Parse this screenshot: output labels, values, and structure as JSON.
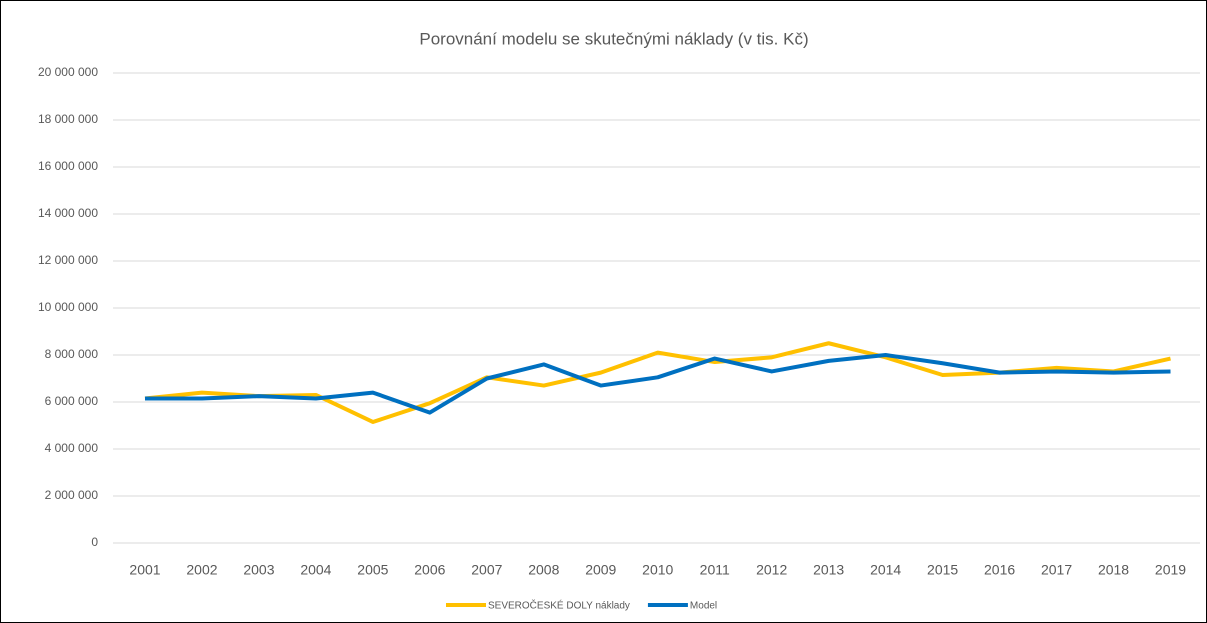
{
  "chart_data": {
    "type": "line",
    "title": "Porovnání modelu se skutečnými náklady (v tis. Kč)",
    "categories": [
      "2001",
      "2002",
      "2003",
      "2004",
      "2005",
      "2006",
      "2007",
      "2008",
      "2009",
      "2010",
      "2011",
      "2012",
      "2013",
      "2014",
      "2015",
      "2016",
      "2017",
      "2018",
      "2019"
    ],
    "series": [
      {
        "name": "SEVEROČESKÉ DOLY náklady",
        "color": "#ffc000",
        "values": [
          6150000,
          6400000,
          6250000,
          6300000,
          5150000,
          5950000,
          7050000,
          6700000,
          7250000,
          8100000,
          7700000,
          7900000,
          8500000,
          7900000,
          7150000,
          7250000,
          7450000,
          7300000,
          7850000
        ]
      },
      {
        "name": "Model",
        "color": "#0070c0",
        "values": [
          6150000,
          6150000,
          6250000,
          6150000,
          6400000,
          5550000,
          7000000,
          7600000,
          6700000,
          7050000,
          7850000,
          7300000,
          7750000,
          8000000,
          7650000,
          7250000,
          7300000,
          7250000,
          7300000
        ]
      }
    ],
    "ylim": [
      0,
      20000000
    ],
    "yticks": [
      0,
      {
        "value": 2000000,
        "label": "2 000 000"
      },
      {
        "value": 4000000,
        "label": "4 000 000"
      },
      {
        "value": 6000000,
        "label": "6 000 000"
      },
      {
        "value": 8000000,
        "label": "8 000 000"
      },
      {
        "value": 10000000,
        "label": "10 000 000"
      },
      {
        "value": 12000000,
        "label": "12 000 000"
      },
      {
        "value": 14000000,
        "label": "14 000 000"
      },
      {
        "value": 16000000,
        "label": "16 000 000"
      },
      {
        "value": 18000000,
        "label": "18 000 000"
      },
      {
        "value": 20000000,
        "label": "20 000 000"
      }
    ],
    "grid": true,
    "legend": "bottom"
  }
}
